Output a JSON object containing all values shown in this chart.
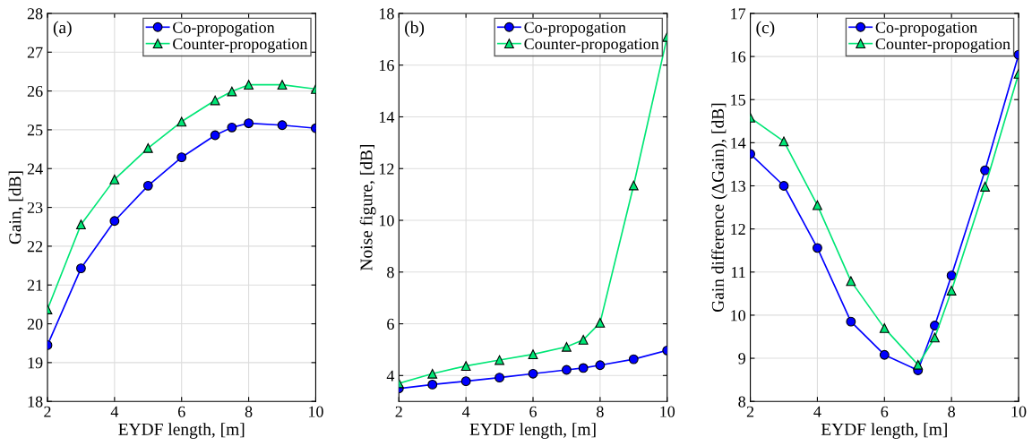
{
  "chart_data": [
    {
      "type": "line",
      "annotations": [
        "(a)"
      ],
      "xlabel": "EYDF length, [m]",
      "ylabel": "Gain, [dB]",
      "x": [
        2,
        3,
        4,
        5,
        6,
        7,
        7.5,
        8,
        9,
        10
      ],
      "series": [
        {
          "name": "Co-propogation",
          "color": "#0000ff",
          "marker": "circle",
          "values": [
            19.45,
            21.43,
            22.65,
            23.56,
            24.29,
            24.86,
            25.06,
            25.17,
            25.12,
            25.04
          ]
        },
        {
          "name": "Counter-propogation",
          "color": "#00e676",
          "marker": "triangle",
          "values": [
            20.37,
            22.56,
            23.72,
            24.53,
            25.21,
            25.76,
            25.99,
            26.16,
            26.16,
            26.05
          ]
        }
      ],
      "xlim": [
        2,
        10
      ],
      "xticks": [
        2,
        4,
        6,
        8,
        10
      ],
      "ylim": [
        18,
        28
      ],
      "yticks": [
        18,
        19,
        20,
        21,
        22,
        23,
        24,
        25,
        26,
        27,
        28
      ],
      "grid": true,
      "legend": "top right"
    },
    {
      "type": "line",
      "annotations": [
        "(b)"
      ],
      "xlabel": "EYDF length, [m]",
      "ylabel": "Noise figure, [dB]",
      "x": [
        2,
        3,
        4,
        5,
        6,
        7,
        7.5,
        8,
        9,
        10
      ],
      "series": [
        {
          "name": "Co-propogation",
          "color": "#0000ff",
          "marker": "circle",
          "values": [
            3.5,
            3.65,
            3.78,
            3.92,
            4.07,
            4.22,
            4.29,
            4.4,
            4.63,
            4.97
          ]
        },
        {
          "name": "Counter-propogation",
          "color": "#00e676",
          "marker": "triangle",
          "values": [
            3.7,
            4.07,
            4.37,
            4.6,
            4.82,
            5.11,
            5.38,
            6.04,
            11.35,
            17.09
          ]
        }
      ],
      "xlim": [
        2,
        10
      ],
      "xticks": [
        2,
        4,
        6,
        8,
        10
      ],
      "ylim": [
        3,
        18
      ],
      "yticks": [
        4,
        6,
        8,
        10,
        12,
        14,
        16,
        18
      ],
      "grid": true,
      "legend": "top right"
    },
    {
      "type": "line",
      "annotations": [
        "(c)"
      ],
      "xlabel": "EYDF length, [m]",
      "ylabel": "Gain difference (ΔGain), [dB]",
      "x": [
        2,
        3,
        4,
        5,
        6,
        7,
        7.5,
        8,
        9,
        10
      ],
      "series": [
        {
          "name": "Co-propogation",
          "color": "#0000ff",
          "marker": "circle",
          "values": [
            13.74,
            13.0,
            11.56,
            9.85,
            9.08,
            8.72,
            9.76,
            10.92,
            13.36,
            16.04
          ]
        },
        {
          "name": "Counter-propogation",
          "color": "#00e676",
          "marker": "triangle",
          "values": [
            14.58,
            14.03,
            12.55,
            10.79,
            9.7,
            8.85,
            9.48,
            10.57,
            12.98,
            15.6
          ]
        }
      ],
      "xlim": [
        2,
        10
      ],
      "xticks": [
        2,
        4,
        6,
        8,
        10
      ],
      "ylim": [
        8,
        17
      ],
      "yticks": [
        8,
        9,
        10,
        11,
        12,
        13,
        14,
        15,
        16,
        17
      ],
      "grid": true,
      "legend": "top right"
    }
  ]
}
